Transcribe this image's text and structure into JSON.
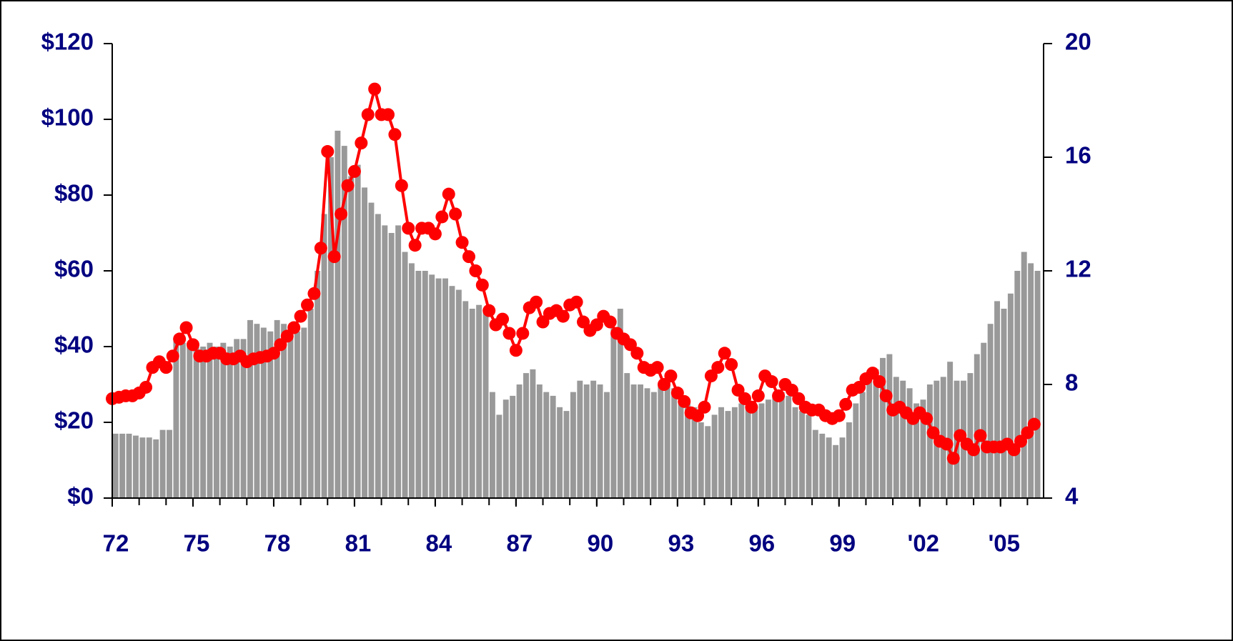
{
  "chart_data": {
    "type": "combo",
    "x": [
      1972,
      1972.25,
      1972.5,
      1972.75,
      1973,
      1973.25,
      1973.5,
      1973.75,
      1974,
      1974.25,
      1974.5,
      1974.75,
      1975,
      1975.25,
      1975.5,
      1975.75,
      1976,
      1976.25,
      1976.5,
      1976.75,
      1977,
      1977.25,
      1977.5,
      1977.75,
      1978,
      1978.25,
      1978.5,
      1978.75,
      1979,
      1979.25,
      1979.5,
      1979.75,
      1980,
      1980.25,
      1980.5,
      1980.75,
      1981,
      1981.25,
      1981.5,
      1981.75,
      1982,
      1982.25,
      1982.5,
      1982.75,
      1983,
      1983.25,
      1983.5,
      1983.75,
      1984,
      1984.25,
      1984.5,
      1984.75,
      1985,
      1985.25,
      1985.5,
      1985.75,
      1986,
      1986.25,
      1986.5,
      1986.75,
      1987,
      1987.25,
      1987.5,
      1987.75,
      1988,
      1988.25,
      1988.5,
      1988.75,
      1989,
      1989.25,
      1989.5,
      1989.75,
      1990,
      1990.25,
      1990.5,
      1990.75,
      1991,
      1991.25,
      1991.5,
      1991.75,
      1992,
      1992.25,
      1992.5,
      1992.75,
      1993,
      1993.25,
      1993.5,
      1993.75,
      1994,
      1994.25,
      1994.5,
      1994.75,
      1995,
      1995.25,
      1995.5,
      1995.75,
      1996,
      1996.25,
      1996.5,
      1996.75,
      1997,
      1997.25,
      1997.5,
      1997.75,
      1998,
      1998.25,
      1998.5,
      1998.75,
      1999,
      1999.25,
      1999.5,
      1999.75,
      2000,
      2000.25,
      2000.5,
      2000.75,
      2001,
      2001.25,
      2001.5,
      2001.75,
      2002,
      2002.25,
      2002.5,
      2002.75,
      2003,
      2003.25,
      2003.5,
      2003.75,
      2004,
      2004.25,
      2004.5,
      2004.75,
      2005,
      2005.25,
      2005.5,
      2005.75,
      2006,
      2006.25
    ],
    "series": [
      {
        "type": "bar",
        "color": "#999999",
        "values": [
          17,
          17,
          17,
          16.5,
          16,
          16,
          15.5,
          18,
          18,
          42,
          41,
          41,
          40,
          40,
          41,
          40,
          41,
          40,
          42,
          42,
          47,
          46,
          45,
          44,
          47,
          46,
          45,
          44,
          45,
          50,
          60,
          75,
          90,
          97,
          93,
          85,
          88,
          82,
          78,
          75,
          72,
          70,
          72,
          65,
          62,
          60,
          60,
          59,
          58,
          58,
          56,
          55,
          52,
          50,
          51,
          50,
          28,
          22,
          26,
          27,
          30,
          33,
          34,
          30,
          28,
          27,
          24,
          23,
          28,
          31,
          30,
          31,
          30,
          28,
          45,
          50,
          33,
          30,
          30,
          29,
          28,
          30,
          31,
          29,
          27,
          26,
          24,
          20,
          19,
          22,
          24,
          23,
          24,
          25,
          24,
          24,
          25,
          26,
          27,
          28,
          27,
          24,
          23,
          22,
          18,
          17,
          16,
          14,
          16,
          20,
          25,
          28,
          33,
          34,
          37,
          38,
          32,
          31,
          29,
          25,
          26,
          30,
          31,
          32,
          36,
          31,
          31,
          33,
          38,
          41,
          46,
          52,
          50,
          54,
          60,
          65,
          62,
          60
        ]
      },
      {
        "type": "line",
        "axis": "y2",
        "color": "#ff0000",
        "values": [
          7.5,
          7.55,
          7.6,
          7.6,
          7.7,
          7.9,
          8.6,
          8.8,
          8.6,
          9.0,
          9.6,
          10.0,
          9.4,
          9.0,
          9.0,
          9.1,
          9.1,
          8.9,
          8.9,
          9.0,
          8.8,
          8.9,
          8.95,
          9.0,
          9.1,
          9.4,
          9.7,
          10.0,
          10.4,
          10.8,
          11.2,
          12.8,
          16.2,
          12.5,
          14.0,
          15.0,
          15.5,
          16.5,
          17.5,
          18.4,
          17.5,
          17.5,
          16.8,
          15.0,
          13.5,
          12.9,
          13.5,
          13.5,
          13.3,
          13.9,
          14.7,
          14.0,
          13.0,
          12.5,
          12.0,
          11.5,
          10.6,
          10.1,
          10.3,
          9.8,
          9.2,
          9.8,
          10.7,
          10.9,
          10.2,
          10.5,
          10.6,
          10.4,
          10.8,
          10.9,
          10.2,
          9.9,
          10.1,
          10.4,
          10.2,
          9.8,
          9.6,
          9.4,
          9.1,
          8.6,
          8.5,
          8.6,
          8.0,
          8.3,
          7.7,
          7.4,
          7.0,
          6.9,
          7.2,
          8.3,
          8.6,
          9.1,
          8.7,
          7.8,
          7.5,
          7.2,
          7.6,
          8.3,
          8.1,
          7.6,
          8.0,
          7.8,
          7.5,
          7.2,
          7.1,
          7.1,
          6.9,
          6.8,
          6.9,
          7.3,
          7.8,
          7.9,
          8.2,
          8.4,
          8.1,
          7.6,
          7.1,
          7.2,
          7.0,
          6.8,
          7.0,
          6.8,
          6.3,
          6.0,
          5.9,
          5.4,
          6.2,
          5.9,
          5.7,
          6.2,
          5.8,
          5.8,
          5.8,
          5.9,
          5.7,
          6.0,
          6.3,
          6.6
        ]
      }
    ],
    "xlim": [
      1972,
      2006.6
    ],
    "xticks": [
      {
        "value": 1972,
        "label": "72"
      },
      {
        "value": 1975,
        "label": "75"
      },
      {
        "value": 1978,
        "label": "78"
      },
      {
        "value": 1981,
        "label": "81"
      },
      {
        "value": 1984,
        "label": "84"
      },
      {
        "value": 1987,
        "label": "87"
      },
      {
        "value": 1990,
        "label": "90"
      },
      {
        "value": 1993,
        "label": "93"
      },
      {
        "value": 1996,
        "label": "96"
      },
      {
        "value": 1999,
        "label": "99"
      },
      {
        "value": 2002,
        "label": "'02"
      },
      {
        "value": 2005,
        "label": "'05"
      }
    ],
    "xminorticks": [
      1972,
      1973,
      1974,
      1975,
      1976,
      1977,
      1978,
      1979,
      1980,
      1981,
      1982,
      1983,
      1984,
      1985,
      1986,
      1987,
      1988,
      1989,
      1990,
      1991,
      1992,
      1993,
      1994,
      1995,
      1996,
      1997,
      1998,
      1999,
      2000,
      2001,
      2002,
      2003,
      2004,
      2005,
      2006
    ],
    "ylim": [
      0,
      120
    ],
    "yticks": [
      {
        "value": 0,
        "label": "$0"
      },
      {
        "value": 20,
        "label": "$20"
      },
      {
        "value": 40,
        "label": "$40"
      },
      {
        "value": 60,
        "label": "$60"
      },
      {
        "value": 80,
        "label": "$80"
      },
      {
        "value": 100,
        "label": "$100"
      },
      {
        "value": 120,
        "label": "$120"
      }
    ],
    "y2lim": [
      4,
      20
    ],
    "y2ticks": [
      4,
      8,
      12,
      16,
      20
    ]
  }
}
